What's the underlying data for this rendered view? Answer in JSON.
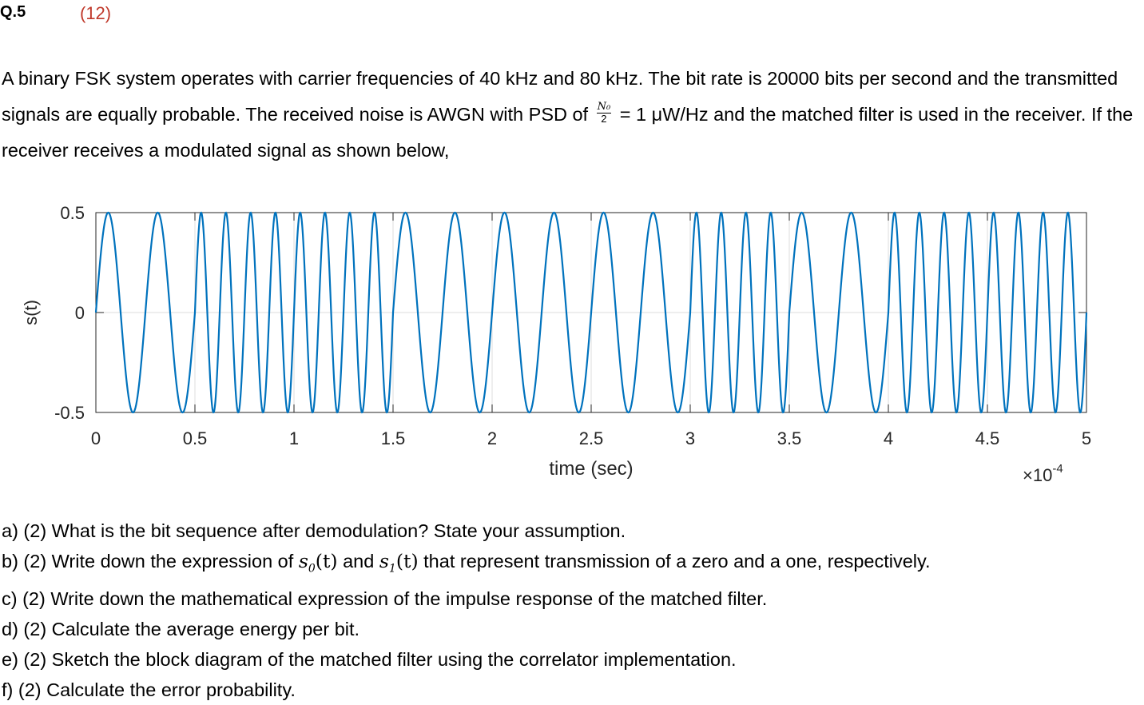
{
  "question": {
    "number": "Q.5",
    "marks": "(12)"
  },
  "intro": {
    "part1": "A binary FSK system operates with carrier frequencies of 40 kHz and 80 kHz. The bit rate is 20000 bits per second and the transmitted signals are equally probable. The received noise is AWGN with PSD of",
    "frac_num": "N₀",
    "frac_den": "2",
    "part2": " = 1  μW/Hz and the matched filter is used in the receiver. If the receiver receives a modulated signal as shown below,"
  },
  "chart_data": {
    "type": "line",
    "title": "",
    "xlabel": "time (sec)",
    "ylabel": "s(t)",
    "x_multiplier": "×10",
    "x_multiplier_exp": "-4",
    "xlim": [
      0,
      5
    ],
    "ylim": [
      -0.5,
      0.5
    ],
    "xticks": [
      "0",
      "0.5",
      "1",
      "1.5",
      "2",
      "2.5",
      "3",
      "3.5",
      "4",
      "4.5",
      "5"
    ],
    "yticks": [
      "0.5",
      "0",
      "-0.5"
    ],
    "amplitude": 0.5,
    "bit_duration_x1e-4": 0.5,
    "bit_frequencies_kHz": [
      40,
      80,
      80,
      40,
      40,
      40,
      80,
      40,
      80,
      80
    ],
    "color": "#0072BD",
    "grid": true
  },
  "questions": {
    "a": "a) (2) What is the bit sequence after demodulation? State your assumption.",
    "b_pre": "b) (2) Write down the expression of ",
    "b_s0_base": "s",
    "b_s0_sub": "0",
    "b_t": "(t)",
    "b_and": " and ",
    "b_s1_base": "s",
    "b_s1_sub": "1",
    "b_post": " that represent transmission of a zero and a one, respectively.",
    "c": "c) (2) Write down the mathematical expression of the impulse response of the matched filter.",
    "d": "d) (2) Calculate the average energy per bit.",
    "e": "e) (2) Sketch the block diagram of the matched filter using the correlator implementation.",
    "f": "f) (2) Calculate the error probability."
  }
}
